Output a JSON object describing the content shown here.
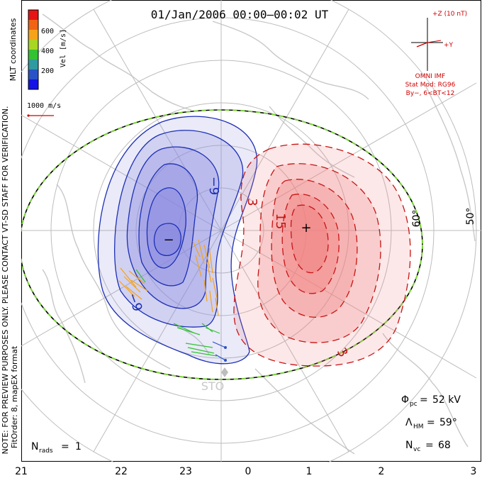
{
  "title": "01/Jan/2006 00:00–00:02 UT",
  "colorbar": {
    "title": "Vel [m/s]",
    "ticks": [
      "600",
      "400",
      "200"
    ],
    "colors": [
      "#1414e6",
      "#2a52c8",
      "#2f9aa0",
      "#33c233",
      "#a8d622",
      "#f5a319",
      "#f06414",
      "#e61414"
    ]
  },
  "coord_label": "MLT coordinates",
  "vector_scale": {
    "label": "1000 m/s",
    "color": "#d00000"
  },
  "side_note": {
    "line1": "NOTE: FOR PREVIEW PURPOSES ONLY. PLEASE CONTACT VT-SD STAFF FOR VERIFICATION.",
    "line2": "FitOrder: 8, mapEX format"
  },
  "imf": {
    "z_label": "+Z (10 nT)",
    "y_label": "+Y",
    "source": "OMNI IMF",
    "model": "Stat Mod: RG96",
    "condition": "By−, 6<BT<12",
    "color": "#d00000"
  },
  "stats": {
    "phi_pc": "52 kV",
    "lambda_hm": "59°",
    "n_vc": "68",
    "n_rads": "1"
  },
  "lat_labels": [
    "60°",
    "50°"
  ],
  "station": "STO",
  "x_axis": {
    "ticks": [
      "21",
      "22",
      "23",
      "0",
      "1",
      "2",
      "3"
    ]
  },
  "contours": {
    "neg_labels": [
      "−9",
      "−9"
    ],
    "pos_labels": [
      "15",
      "3",
      "3"
    ],
    "neg_color": "#1c2fb5",
    "pos_color": "#c81414",
    "neg_fill": "#8888e0",
    "pos_fill": "#f08080"
  },
  "extrema": {
    "min_symbol": "−",
    "max_symbol": "+"
  }
}
